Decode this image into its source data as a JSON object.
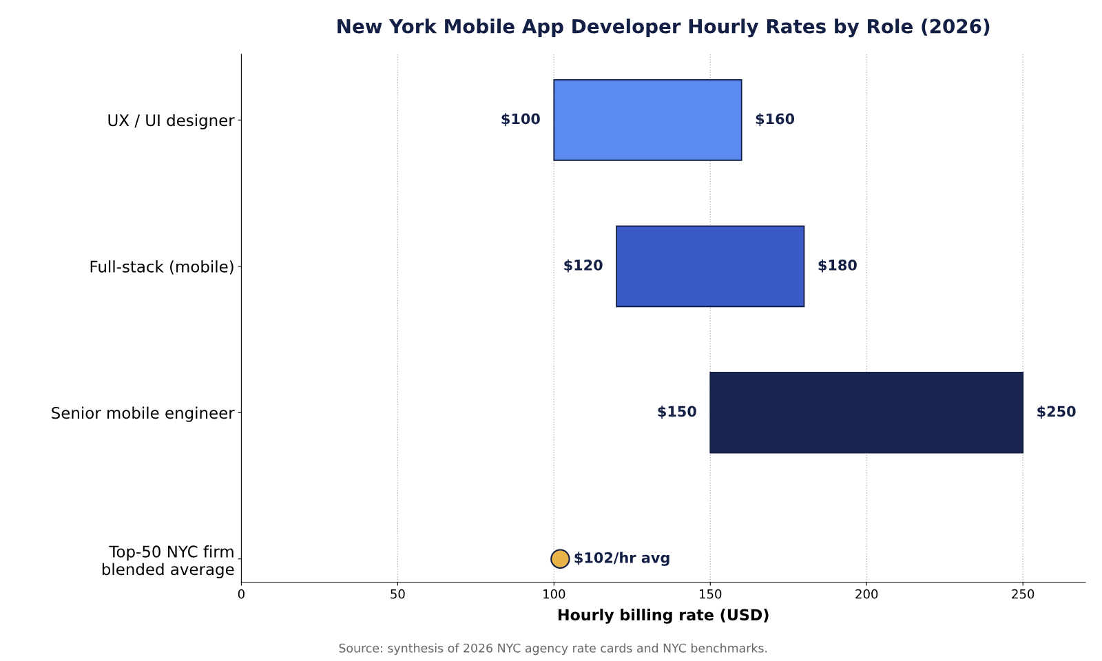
{
  "chart_data": {
    "type": "bar",
    "orientation": "horizontal",
    "title": "New York Mobile App Developer Hourly Rates by Role (2026)",
    "xlabel": "Hourly billing rate (USD)",
    "categories": [
      "UX / UI designer",
      "Full-stack (mobile)",
      "Senior mobile engineer",
      "Top-50 NYC firm\nblended average"
    ],
    "series": [
      {
        "colors": [
          "#5b8af0",
          "#3a5bc7",
          "#19264f",
          null
        ],
        "base": [
          100,
          120,
          150,
          null
        ],
        "values": [
          60,
          60,
          100,
          null
        ]
      },
      {
        "type": "scatter",
        "color": "#e8b44a",
        "values": [
          null,
          null,
          null,
          102
        ]
      }
    ],
    "xlim": [
      0,
      270
    ],
    "xticks": [
      0,
      50,
      100,
      150,
      200,
      250
    ],
    "grid": "x",
    "legend": false,
    "marker": "circle",
    "annotations": [
      {
        "text": "$100",
        "x": 100,
        "y": "UX / UI designer"
      },
      {
        "text": "$160",
        "x": 160,
        "y": "UX / UI designer"
      },
      {
        "text": "$120",
        "x": 120,
        "y": "Full-stack (mobile)"
      },
      {
        "text": "$180",
        "x": 180,
        "y": "Full-stack (mobile)"
      },
      {
        "text": "$150",
        "x": 150,
        "y": "Senior mobile engineer"
      },
      {
        "text": "$250",
        "x": 250,
        "y": "Senior mobile engineer"
      },
      {
        "text": "$102/hr avg",
        "x": 102,
        "y": "Top-50 NYC firm\nblended average"
      },
      "Source: synthesis of 2026 NYC agency rate cards and NYC benchmarks."
    ]
  }
}
